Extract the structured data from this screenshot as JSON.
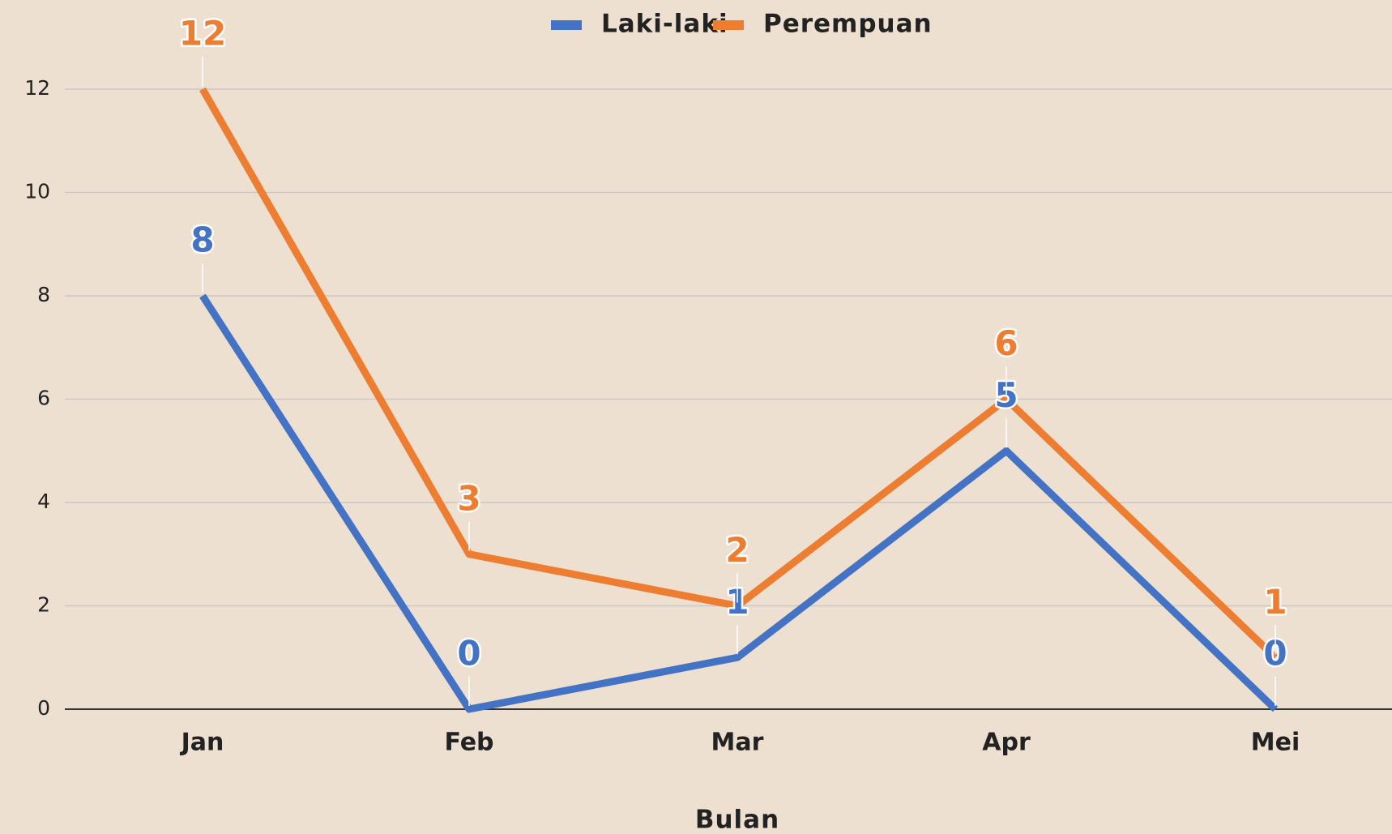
{
  "chart_data": {
    "type": "line",
    "x_label": "Bulan",
    "categories": [
      "Jan",
      "Feb",
      "Mar",
      "Apr",
      "Mei"
    ],
    "series": [
      {
        "name": "Laki-laki",
        "color": "#4472c4",
        "values": [
          8,
          0,
          1,
          5,
          0
        ]
      },
      {
        "name": "Perempuan",
        "color": "#ed7d31",
        "values": [
          12,
          3,
          2,
          6,
          1
        ]
      }
    ],
    "ylim": [
      0,
      12
    ],
    "yticks": [
      0,
      2,
      4,
      6,
      8,
      10,
      12
    ],
    "grid": true,
    "legend": "top"
  }
}
